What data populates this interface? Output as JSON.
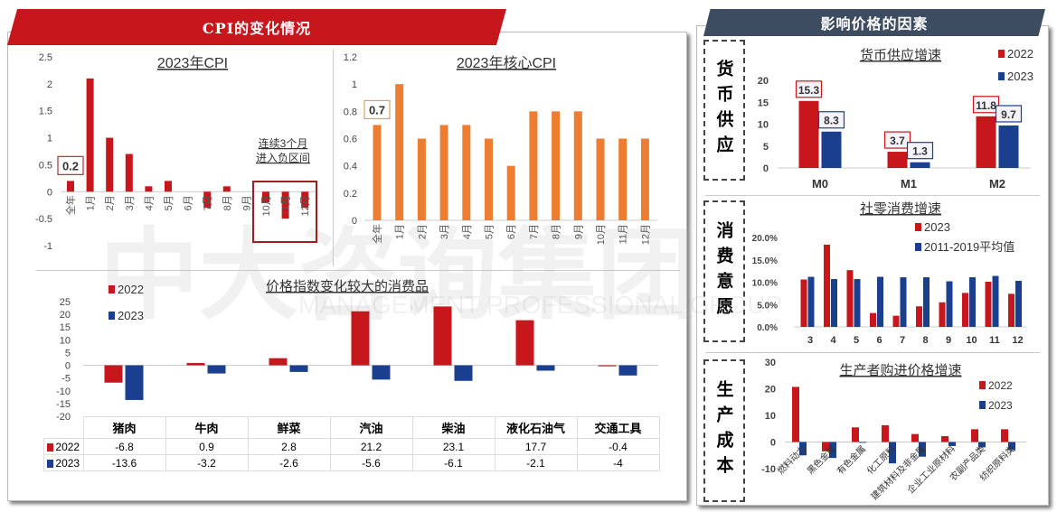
{
  "left_header": "CPI的变化情况",
  "right_header": "影响价格的因素",
  "colors": {
    "red": "#c8161d",
    "blue": "#1b3f8f",
    "orange": "#ed7d31",
    "dark_header": "#3d4c61"
  },
  "watermark": {
    "cn": "中大咨询集团",
    "en": "MANAGEMENT PROFESSIONAL GROUP"
  },
  "side_labels": {
    "money": "货币供应",
    "consumption": "消费意愿",
    "cost": "生产成本"
  },
  "chart_data": [
    {
      "id": "cpi",
      "type": "bar",
      "title": "2023年CPI",
      "categories": [
        "全年",
        "1月",
        "2月",
        "3月",
        "4月",
        "5月",
        "6月",
        "7月",
        "8月",
        "9月",
        "10月",
        "11月",
        "12月"
      ],
      "values": [
        0.2,
        2.1,
        1.0,
        0.7,
        0.1,
        0.2,
        0,
        -0.3,
        0.1,
        0,
        -0.2,
        -0.5,
        -0.3
      ],
      "yticks": [
        "2.5",
        "2",
        "1.5",
        "1",
        "0.5",
        "0",
        "-0.5",
        "-1"
      ],
      "ylim": [
        -1,
        2.5
      ],
      "callout": "0.2",
      "annotation": [
        "连续3个月",
        "进入负区间"
      ],
      "color": "#c8161d"
    },
    {
      "id": "core_cpi",
      "type": "bar",
      "title": "2023年核心CPI",
      "categories": [
        "全年",
        "1月",
        "2月",
        "3月",
        "4月",
        "5月",
        "6月",
        "7月",
        "8月",
        "9月",
        "10月",
        "11月",
        "12月"
      ],
      "values": [
        0.7,
        1.0,
        0.6,
        0.7,
        0.7,
        0.6,
        0.4,
        0.8,
        0.8,
        0.8,
        0.6,
        0.6,
        0.6
      ],
      "yticks": [
        "1.2",
        "1",
        "0.8",
        "0.6",
        "0.4",
        "0.2",
        "0"
      ],
      "ylim": [
        0,
        1.2
      ],
      "callout": "0.7",
      "color": "#ed7d31"
    },
    {
      "id": "consumer_goods",
      "type": "bar",
      "title": "价格指数变化较大的消费品",
      "categories": [
        "猪肉",
        "牛肉",
        "鲜菜",
        "汽油",
        "柴油",
        "液化石油气",
        "交通工具"
      ],
      "series": [
        {
          "name": "2022",
          "values": [
            -6.8,
            0.9,
            2.8,
            21.2,
            23.1,
            17.7,
            -0.4
          ],
          "labels": [
            "-6.8",
            "0.9",
            "2.8",
            "21.2",
            "23.1",
            "17.7",
            "-0.4"
          ]
        },
        {
          "name": "2023",
          "values": [
            -13.6,
            -3.2,
            -2.6,
            -5.6,
            -6.1,
            -2.1,
            -4
          ],
          "labels": [
            "-13.6",
            "-3.2",
            "-2.6",
            "-5.6",
            "-6.1",
            "-2.1",
            "-4"
          ]
        }
      ],
      "yticks": [
        "25",
        "20",
        "15",
        "10",
        "5",
        "0",
        "-5",
        "-10",
        "-15",
        "-20"
      ],
      "ylim": [
        -20,
        25
      ],
      "legend": "top-left"
    },
    {
      "id": "money_supply",
      "type": "bar",
      "title": "货币供应增速",
      "categories": [
        "M0",
        "M1",
        "M2"
      ],
      "series": [
        {
          "name": "2022",
          "values": [
            15.3,
            3.7,
            11.8
          ],
          "labels": [
            "15.3",
            "3.7",
            "11.8"
          ]
        },
        {
          "name": "2023",
          "values": [
            8.3,
            1.3,
            9.7
          ],
          "labels": [
            "8.3",
            "1.3",
            "9.7"
          ]
        }
      ],
      "yticks": [
        "20",
        "15",
        "10",
        "5",
        "0"
      ],
      "ylim": [
        0,
        20
      ],
      "legend": "top-right"
    },
    {
      "id": "retail",
      "type": "bar",
      "title": "社零消费增速",
      "categories": [
        "3",
        "4",
        "5",
        "6",
        "7",
        "8",
        "9",
        "10",
        "11",
        "12"
      ],
      "series": [
        {
          "name": "2023",
          "values": [
            10.6,
            18.4,
            12.7,
            3.1,
            2.5,
            4.6,
            5.5,
            7.6,
            10.1,
            7.4
          ]
        },
        {
          "name": "2011-2019平均值",
          "values": [
            11.2,
            10.7,
            10.7,
            11.2,
            11.1,
            11.1,
            10.2,
            11.1,
            11.4,
            10.3
          ]
        }
      ],
      "yticks": [
        "20.0%",
        "15.0%",
        "10.0%",
        "5.0%",
        "0.0%"
      ],
      "ylim": [
        0,
        20
      ],
      "legend": "top-right"
    },
    {
      "id": "producer_purchase",
      "type": "bar",
      "title": "生产者购进价格增速",
      "categories": [
        "燃料动力",
        "黑色金属",
        "有色金属",
        "化工原料",
        "建筑材料及非金属",
        "企业工业原材料",
        "农副产品类",
        "纺织原料类"
      ],
      "series": [
        {
          "name": "2022",
          "values": [
            20.7,
            -3.5,
            5.5,
            6.3,
            3.0,
            2.2,
            4.8,
            4.8
          ]
        },
        {
          "name": "2023",
          "values": [
            -5.0,
            -6.0,
            -0.3,
            -8.0,
            -5.5,
            -1.5,
            -2.0,
            -3.0
          ]
        }
      ],
      "yticks": [
        "30",
        "20",
        "10",
        "0",
        "-10"
      ],
      "ylim": [
        -10,
        30
      ],
      "legend": "right"
    }
  ]
}
